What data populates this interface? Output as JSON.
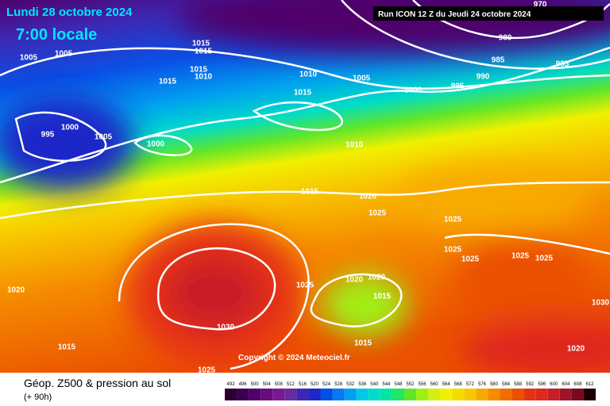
{
  "header": {
    "date": "Lundi 28 octobre 2024",
    "time": "7:00 locale",
    "run": "Run ICON 12 Z du Jeudi 24 octobre 2024"
  },
  "copyright": "Copyright © 2024 Meteociel.fr",
  "footer": {
    "title": "Géop. Z500 & pression au sol",
    "lead": "(+ 90h)"
  },
  "isobar_labels": [
    970,
    980,
    985,
    985,
    990,
    995,
    1000,
    1005,
    1010,
    1015,
    1005,
    1005,
    1015,
    1015,
    1015,
    1010,
    1015,
    995,
    1000,
    1005,
    1000,
    1010,
    1015,
    1020,
    1025,
    1025,
    1025,
    1025,
    1025,
    1025,
    1020,
    1025,
    1020,
    1020,
    1015,
    1030,
    1015,
    1015,
    1020,
    1030,
    1025
  ],
  "scale": {
    "labels": [
      492,
      496,
      500,
      504,
      508,
      512,
      516,
      520,
      524,
      528,
      532,
      536,
      540,
      544,
      548,
      552,
      556,
      560,
      564,
      568,
      572,
      576,
      580,
      584,
      588,
      592,
      596,
      600,
      604,
      608,
      612
    ],
    "colors": [
      "#2a0030",
      "#3a0050",
      "#50006a",
      "#6a0a7e",
      "#7a1890",
      "#6a2aa0",
      "#3c28b4",
      "#1e28c8",
      "#0050e6",
      "#0a78f0",
      "#00a0f0",
      "#00c8e6",
      "#00dcc8",
      "#00e6a0",
      "#20e664",
      "#60e628",
      "#a0f014",
      "#d2f014",
      "#f0f000",
      "#f5dc00",
      "#f8c800",
      "#f8aa00",
      "#f58c00",
      "#f06e00",
      "#eb5000",
      "#e63214",
      "#e0281e",
      "#c81e28",
      "#a01428",
      "#780a1e",
      "#1e0000"
    ]
  }
}
